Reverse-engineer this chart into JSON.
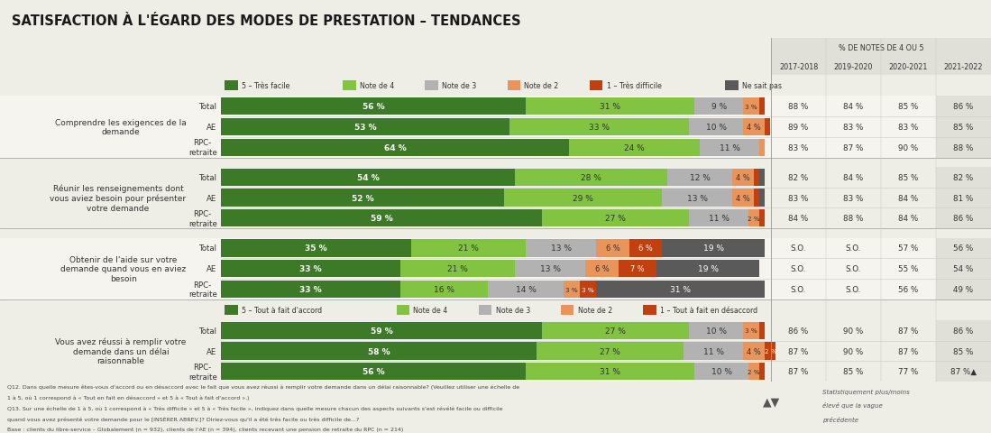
{
  "title": "SATISFACTION À L'ÉGARD DES MODES DE PRESTATION – TENDANCES",
  "legend1_items": [
    {
      "label": "5 – Très facile",
      "color": "#3d7a28"
    },
    {
      "label": "Note de 4",
      "color": "#82c341"
    },
    {
      "label": "Note de 3",
      "color": "#b2b2b2"
    },
    {
      "label": "Note de 2",
      "color": "#e8945a"
    },
    {
      "label": "1 – Très difficile",
      "color": "#c04010"
    },
    {
      "label": "Ne sait pas",
      "color": "#5a5a5a"
    }
  ],
  "legend2_items": [
    {
      "label": "5 – Tout à fait d'accord",
      "color": "#3d7a28"
    },
    {
      "label": "Note de 4",
      "color": "#82c341"
    },
    {
      "label": "Note de 3",
      "color": "#b2b2b2"
    },
    {
      "label": "Note de 2",
      "color": "#e8945a"
    },
    {
      "label": "1 – Tout à fait en désaccord",
      "color": "#c04010"
    }
  ],
  "colors": [
    "#3d7a28",
    "#82c341",
    "#b2b2b2",
    "#e8945a",
    "#c04010",
    "#5a5a5a"
  ],
  "year_cols": [
    "2017-2018",
    "2019-2020",
    "2020-2021",
    "2021-2022"
  ],
  "sections": [
    {
      "label": "Comprendre les exigences de la\ndemande",
      "rows": [
        {
          "name": "Total",
          "bars": [
            56,
            31,
            9,
            3,
            1,
            0
          ],
          "trend": [
            "88 %",
            "84 %",
            "85 %",
            "86 %"
          ]
        },
        {
          "name": "AE",
          "bars": [
            53,
            33,
            10,
            4,
            1,
            0
          ],
          "trend": [
            "89 %",
            "83 %",
            "83 %",
            "85 %"
          ]
        },
        {
          "name": "RPC-\nretraite",
          "bars": [
            64,
            24,
            11,
            1,
            0,
            0
          ],
          "trend": [
            "83 %",
            "87 %",
            "90 %",
            "88 %"
          ]
        }
      ]
    },
    {
      "label": "Réunir les renseignements dont\nvous aviez besoin pour présenter\nvotre demande",
      "rows": [
        {
          "name": "Total",
          "bars": [
            54,
            28,
            12,
            4,
            1,
            1
          ],
          "trend": [
            "82 %",
            "84 %",
            "85 %",
            "82 %"
          ]
        },
        {
          "name": "AE",
          "bars": [
            52,
            29,
            13,
            4,
            1,
            1
          ],
          "trend": [
            "83 %",
            "83 %",
            "84 %",
            "81 %"
          ]
        },
        {
          "name": "RPC-\nretraite",
          "bars": [
            59,
            27,
            11,
            2,
            1,
            0
          ],
          "trend": [
            "84 %",
            "88 %",
            "84 %",
            "86 %"
          ]
        }
      ]
    },
    {
      "label": "Obtenir de l'aide sur votre\ndemande quand vous en aviez\nbesoin",
      "rows": [
        {
          "name": "Total",
          "bars": [
            35,
            21,
            13,
            6,
            6,
            19
          ],
          "trend": [
            "S.O.",
            "S.O.",
            "57 %",
            "56 %"
          ]
        },
        {
          "name": "AE",
          "bars": [
            33,
            21,
            13,
            6,
            7,
            19
          ],
          "trend": [
            "S.O.",
            "S.O.",
            "55 %",
            "54 %"
          ]
        },
        {
          "name": "RPC-\nretraite",
          "bars": [
            33,
            16,
            14,
            3,
            3,
            31
          ],
          "trend": [
            "S.O.",
            "S.O.",
            "56 %",
            "49 %"
          ]
        }
      ]
    },
    {
      "label": "Vous avez réussi à remplir votre\ndemande dans un délai\nraisonnable",
      "rows": [
        {
          "name": "Total",
          "bars": [
            59,
            27,
            10,
            3,
            1,
            0
          ],
          "trend": [
            "86 %",
            "90 %",
            "87 %",
            "86 %"
          ]
        },
        {
          "name": "AE",
          "bars": [
            58,
            27,
            11,
            4,
            2,
            0
          ],
          "trend": [
            "87 %",
            "90 %",
            "87 %",
            "85 %"
          ]
        },
        {
          "name": "RPC-\nretraite",
          "bars": [
            56,
            31,
            10,
            2,
            1,
            0
          ],
          "trend": [
            "87 %",
            "85 %",
            "77 %",
            "87 %▲"
          ]
        }
      ]
    }
  ],
  "footnotes": [
    "Q12. Dans quelle mesure êtes-vous d'accord ou en désaccord avec le fait que vous avez réussi à remplir votre demande dans un délai raisonnable? (Veuillez utiliser une échelle de",
    "1 à 5, où 1 correspond à « Tout en fait en désaccord » et 5 à « Tout à fait d'accord ».)",
    "Q13. Sur une échelle de 1 à 5, où 1 correspond à « Très difficile » et 5 à « Très facile », indiquez dans quelle mesure chacun des aspects suivants s'est révélé facile ou difficile",
    "quand vous avez présenté votre demande pour le [INSÉRER ABREV.]? Diriez-vous qu'il a été très facile ou très difficile de...?",
    "Base : clients du libre-service – Globalement (n = 932), clients de l'AE (n = 394), clients recevant une pension de retraite du RPC (n = 214)"
  ]
}
